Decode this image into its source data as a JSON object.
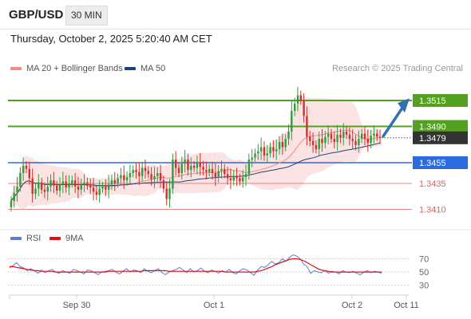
{
  "header": {
    "symbol": "GBP/USD",
    "timeframe": "30 MIN",
    "timestamp": "Thursday, October 2, 2025 5:20:40 AM CET"
  },
  "legend": {
    "ma20_label": "MA 20 + Bollinger Bands",
    "ma20_color": "#f28b82",
    "ma50_label": "MA 50",
    "ma50_color": "#1f3f7a"
  },
  "credit": "Research © 2025 Trading Central",
  "rsi_legend": {
    "rsi_label": "RSI",
    "rsi_color": "#5b7fd6",
    "ma_label": "9MA",
    "ma_color": "#e01010"
  },
  "colors": {
    "up": "#2e9e3e",
    "down": "#d0312d",
    "resistance": "#54a020",
    "support": "#2a6be0",
    "target": "#e06060",
    "current": "#333333",
    "bands": "#fadada",
    "arrow": "#2f6fb3"
  },
  "chart_data": [
    {
      "type": "candlestick",
      "ylim": [
        1.3395,
        1.3535
      ],
      "x_labels": [
        "Sep 30",
        "Oct 1",
        "Oct 2",
        "Oct 11"
      ],
      "levels": [
        {
          "value": 1.3515,
          "label": "1.3515",
          "kind": "resistance"
        },
        {
          "value": 1.349,
          "label": "1.3490",
          "kind": "resistance"
        },
        {
          "value": 1.3479,
          "label": "1.3479",
          "kind": "current"
        },
        {
          "value": 1.3455,
          "label": "1.3455",
          "kind": "support"
        },
        {
          "value": 1.3435,
          "label": "1.3435",
          "kind": "target"
        },
        {
          "value": 1.341,
          "label": "1.3410",
          "kind": "target"
        }
      ],
      "series": [
        {
          "kind": "price",
          "start": 1.3412,
          "values": [
            1.3418,
            1.3426,
            1.3432,
            1.3445,
            1.3452,
            1.3449,
            1.344,
            1.3425,
            1.343,
            1.3436,
            1.3429,
            1.3427,
            1.3432,
            1.3438,
            1.3433,
            1.3428,
            1.3434,
            1.3437,
            1.3431,
            1.3435,
            1.3438,
            1.3432,
            1.3429,
            1.3434,
            1.3436,
            1.3433,
            1.3431,
            1.3427,
            1.3424,
            1.343,
            1.3432,
            1.3429,
            1.3434,
            1.3438,
            1.3435,
            1.344,
            1.3443,
            1.3438,
            1.3441,
            1.3445,
            1.3448,
            1.3446,
            1.3442,
            1.345,
            1.3447,
            1.3444,
            1.3439,
            1.3442,
            1.3445,
            1.3438,
            1.343,
            1.342,
            1.343,
            1.3458,
            1.345,
            1.3445,
            1.3454,
            1.3458,
            1.3448,
            1.3452,
            1.345,
            1.3455,
            1.3451,
            1.3448,
            1.3446,
            1.3449,
            1.3445,
            1.3441,
            1.3447,
            1.3449,
            1.3444,
            1.344,
            1.3438,
            1.3442,
            1.344,
            1.3437,
            1.3441,
            1.3444,
            1.3458,
            1.346,
            1.3464,
            1.3466,
            1.347,
            1.3462,
            1.3464,
            1.347,
            1.3466,
            1.3468,
            1.3475,
            1.347,
            1.3478,
            1.3485,
            1.3505,
            1.3512,
            1.352,
            1.3515,
            1.35,
            1.348,
            1.3476,
            1.3472,
            1.3468,
            1.3478,
            1.3474,
            1.348,
            1.3483,
            1.3478,
            1.3475,
            1.3482,
            1.3479,
            1.3485,
            1.3482,
            1.3478,
            1.3476,
            1.3472,
            1.3478,
            1.3483,
            1.3478,
            1.3474,
            1.3481,
            1.3483,
            1.348,
            1.3479
          ]
        }
      ]
    },
    {
      "type": "line",
      "title": "RSI",
      "ylim": [
        20,
        85
      ],
      "y_ticks": [
        70,
        50,
        30
      ],
      "series": [
        {
          "name": "RSI",
          "values": [
            56,
            60,
            64,
            58,
            56,
            52,
            55,
            52,
            48,
            53,
            49,
            52,
            54,
            50,
            48,
            52,
            50,
            48,
            54,
            52,
            50,
            47,
            53,
            52,
            49,
            46,
            50,
            51,
            52,
            54,
            50,
            47,
            51,
            55,
            50,
            53,
            52,
            49,
            55,
            51,
            49,
            52,
            55,
            49,
            46,
            50,
            52,
            54,
            57,
            53,
            49,
            55,
            50,
            52,
            56,
            51,
            49,
            53,
            51,
            48,
            52,
            50,
            54,
            49,
            47,
            52,
            55,
            53,
            49,
            45,
            53,
            58,
            57,
            61,
            66,
            62,
            64,
            70,
            66,
            72,
            76,
            74,
            70,
            62,
            58,
            48,
            52,
            50,
            49,
            52,
            48,
            51,
            50,
            47,
            52,
            50,
            49,
            51,
            48,
            46,
            50,
            52,
            49,
            51,
            50,
            48
          ]
        },
        {
          "name": "9MA",
          "values": [
            58,
            58,
            57,
            56,
            55,
            54,
            53,
            52,
            52,
            51,
            51,
            51,
            51,
            50,
            50,
            50,
            50,
            50,
            50,
            50,
            50,
            50,
            50,
            50,
            50,
            50,
            50,
            50,
            51,
            51,
            51,
            51,
            51,
            51,
            51,
            51,
            51,
            51,
            52,
            52,
            52,
            52,
            52,
            52,
            52,
            51,
            51,
            51,
            51,
            51,
            51,
            51,
            51,
            51,
            51,
            51,
            51,
            51,
            51,
            51,
            51,
            50,
            50,
            50,
            50,
            50,
            50,
            50,
            50,
            50,
            51,
            52,
            54,
            56,
            58,
            61,
            63,
            65,
            67,
            69,
            70,
            70,
            69,
            67,
            64,
            61,
            58,
            55,
            53,
            52,
            51,
            50,
            50,
            50,
            50,
            50,
            50,
            50,
            50,
            50,
            50,
            50,
            50,
            50,
            50,
            50
          ]
        }
      ]
    }
  ]
}
